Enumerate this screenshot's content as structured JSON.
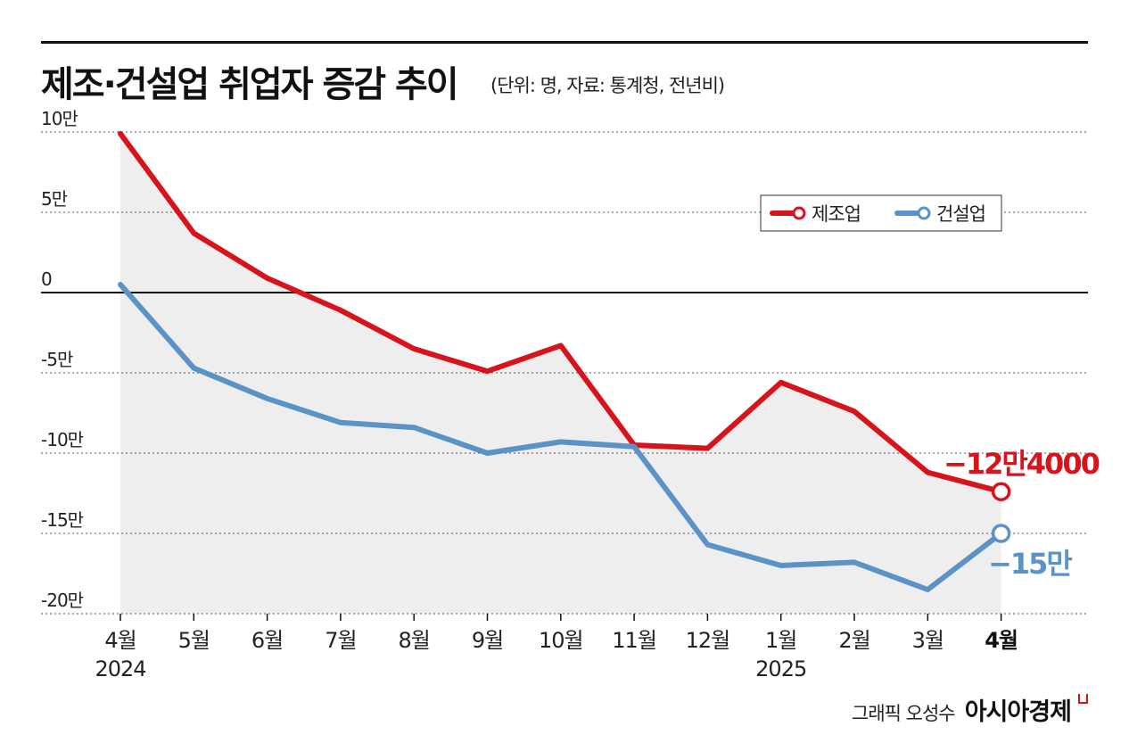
{
  "header": {
    "title": "제조·건설업 취업자 증감 추이",
    "subtitle": "(단위: 명, 자료: 통계청, 전년비)"
  },
  "credit": {
    "author": "그래픽 오성수",
    "brand": "아시아경제"
  },
  "colors": {
    "manufacturing": "#d7141c",
    "construction": "#5b93c7",
    "area_fill": "#eeeeee"
  },
  "chart_data": {
    "type": "line",
    "title": "제조·건설업 취업자 증감 추이",
    "subtitle": "(단위: 명, 자료: 통계청, 전년비)",
    "categories": [
      "4월",
      "5월",
      "6월",
      "7월",
      "8월",
      "9월",
      "10월",
      "11월",
      "12월",
      "1월",
      "2월",
      "3월",
      "4월"
    ],
    "year_labels": [
      {
        "category_index": 0,
        "label": "2024"
      },
      {
        "category_index": 9,
        "label": "2025"
      }
    ],
    "ylim": [
      -20,
      10
    ],
    "yunit": "만명",
    "yticks": [
      10,
      5,
      0,
      -5,
      -10,
      -15,
      -20
    ],
    "ytick_labels": [
      "10만",
      "5만",
      "0",
      "-5만",
      "-10만",
      "-15만",
      "-20만"
    ],
    "grid": "dotted horizontal",
    "legend_position": "top-right",
    "series": [
      {
        "name": "제조업",
        "color": "#d7141c",
        "values": [
          9.9,
          3.7,
          0.9,
          -1.1,
          -3.5,
          -4.9,
          -3.3,
          -9.5,
          -9.7,
          -5.6,
          -7.4,
          -11.2,
          -12.4
        ],
        "end_label": "−12만4000"
      },
      {
        "name": "건설업",
        "color": "#5b93c7",
        "values": [
          0.5,
          -4.7,
          -6.6,
          -8.1,
          -8.4,
          -10.0,
          -9.3,
          -9.6,
          -15.7,
          -17.0,
          -16.8,
          -18.5,
          -15.0
        ],
        "end_label": "−15만"
      }
    ],
    "highlight_last_category": true
  }
}
